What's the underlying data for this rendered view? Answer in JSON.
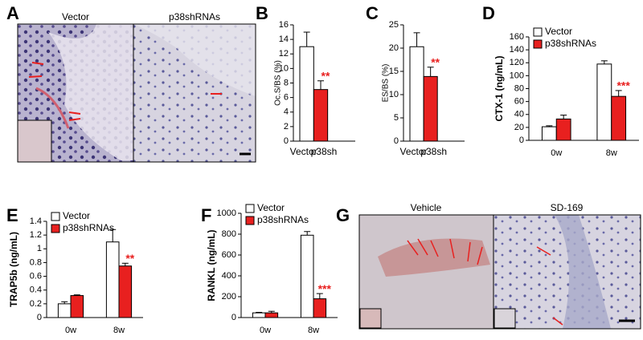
{
  "panel_labels": [
    "A",
    "B",
    "C",
    "D",
    "E",
    "F",
    "G"
  ],
  "images": [
    {
      "captions": [
        "Vector",
        "p38shRNAs"
      ]
    },
    {
      "captions": [
        "Vehicle",
        "SD-169"
      ]
    }
  ],
  "chart_data": [
    {
      "type": "bar",
      "ylabel": "Oc.S/BS (%)",
      "categories": [
        "Vector",
        "p38sh"
      ],
      "values": [
        13,
        7.1
      ],
      "errors": [
        2,
        1.2
      ],
      "colors": [
        "#ffffff",
        "#e8201f"
      ],
      "ylim": [
        0,
        16
      ],
      "yticks": [
        0,
        2,
        4,
        6,
        8,
        10,
        12,
        14,
        16
      ],
      "annotations": [
        "**"
      ]
    },
    {
      "type": "bar",
      "ylabel": "ES/BS (%)",
      "categories": [
        "Vector",
        "p38sh"
      ],
      "values": [
        20.3,
        13.9
      ],
      "errors": [
        3,
        2
      ],
      "colors": [
        "#ffffff",
        "#e8201f"
      ],
      "ylim": [
        0,
        25
      ],
      "yticks": [
        0,
        5,
        10,
        15,
        20,
        25
      ],
      "annotations": [
        "**"
      ]
    },
    {
      "type": "grouped_bar",
      "ylabel": "CTX-1 (ng/mL)",
      "categories": [
        "0w",
        "8w"
      ],
      "series": [
        {
          "name": "Vector",
          "color": "#ffffff",
          "values": [
            21,
            118
          ],
          "errors": [
            1.5,
            5
          ]
        },
        {
          "name": "p38shRNAs",
          "color": "#e8201f",
          "values": [
            33,
            68
          ],
          "errors": [
            6,
            9
          ]
        }
      ],
      "ylim": [
        0,
        160
      ],
      "yticks": [
        0,
        20,
        40,
        60,
        80,
        100,
        120,
        140,
        160
      ],
      "legend": "upper left",
      "annotations": [
        "***"
      ]
    },
    {
      "type": "grouped_bar",
      "ylabel": "TRAP5b (ng/mL)",
      "categories": [
        "0w",
        "8w"
      ],
      "series": [
        {
          "name": "Vector",
          "color": "#ffffff",
          "values": [
            0.2,
            1.1
          ],
          "errors": [
            0.03,
            0.18
          ]
        },
        {
          "name": "p38shRNAs",
          "color": "#e8201f",
          "values": [
            0.32,
            0.75
          ],
          "errors": [
            0.01,
            0.04
          ]
        }
      ],
      "ylim": [
        0,
        1.4
      ],
      "yticks": [
        0,
        0.2,
        0.4,
        0.6,
        0.8,
        1,
        1.2,
        1.4
      ],
      "legend": "upper left",
      "annotations": [
        "**"
      ]
    },
    {
      "type": "grouped_bar",
      "ylabel": "RANKL (ng/mL)",
      "categories": [
        "0w",
        "8w"
      ],
      "series": [
        {
          "name": "Vector",
          "color": "#ffffff",
          "values": [
            45,
            790
          ],
          "errors": [
            5,
            35
          ]
        },
        {
          "name": "p38shRNAs",
          "color": "#e8201f",
          "values": [
            45,
            180
          ],
          "errors": [
            15,
            50
          ]
        }
      ],
      "ylim": [
        0,
        1000
      ],
      "yticks": [
        0,
        200,
        400,
        600,
        800,
        1000
      ],
      "legend": "upper left",
      "annotations": [
        "***"
      ]
    }
  ]
}
